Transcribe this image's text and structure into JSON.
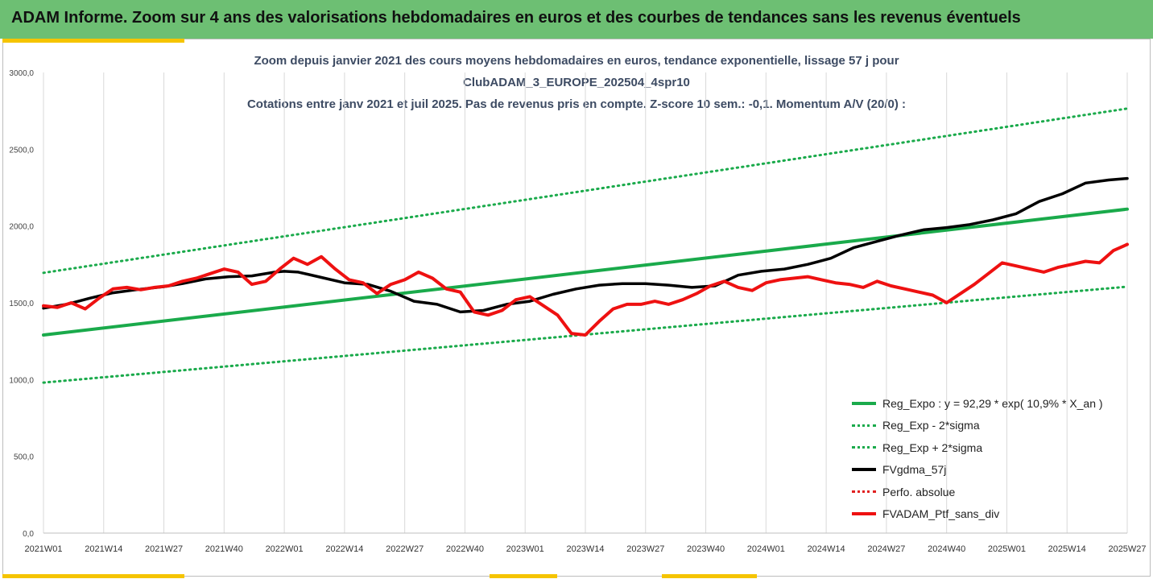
{
  "banner": {
    "title": "ADAM Informe. Zoom sur 4 ans des valorisations hebdomadaires en euros et des courbes de tendances sans les revenus éventuels"
  },
  "chart_data": {
    "type": "line",
    "title_lines": [
      "Zoom depuis janvier 2021 des cours moyens hebdomadaires  en euros, tendance exponentielle, lissage 57 j pour",
      "ClubADAM_3_EUROPE_202504_4spr10",
      "Cotations entre janv 2021 et juil 2025. Pas de revenus pris en compte. Z-score 10 sem.: -0,1. Momentum A/V (20/0) :"
    ],
    "xlabel": "",
    "ylabel": "",
    "ylim": [
      0,
      3000
    ],
    "y_ticks": [
      "0,0",
      "500,0",
      "1000,0",
      "1500,0",
      "2000,0",
      "2500,0",
      "3000,0"
    ],
    "x_ticks": [
      "2021W01",
      "2021W14",
      "2021W27",
      "2021W40",
      "2022W01",
      "2022W14",
      "2022W27",
      "2022W40",
      "2023W01",
      "2023W14",
      "2023W27",
      "2023W40",
      "2024W01",
      "2024W14",
      "2024W27",
      "2024W40",
      "2025W01",
      "2025W14",
      "2025W27"
    ],
    "grid": "vertical",
    "legend_position": "bottom-right",
    "series": [
      {
        "name": "Reg_Expo : y = 92,29 * exp( 10,9% *  X_an )",
        "style": "solid",
        "color": "#1aaa4b",
        "x": [
          0,
          234
        ],
        "y": [
          1290,
          2110
        ]
      },
      {
        "name": "Reg_Exp - 2*sigma",
        "style": "dotted",
        "color": "#1aaa4b",
        "x": [
          0,
          234
        ],
        "y": [
          980,
          1605
        ]
      },
      {
        "name": "Reg_Exp + 2*sigma",
        "style": "dotted",
        "color": "#1aaa4b",
        "x": [
          0,
          234
        ],
        "y": [
          1695,
          2765
        ]
      },
      {
        "name": "FVgdma_57j",
        "style": "solid",
        "color": "#000000",
        "x": [
          0,
          5,
          10,
          15,
          20,
          26,
          30,
          35,
          40,
          45,
          50,
          52,
          55,
          60,
          65,
          70,
          75,
          80,
          85,
          90,
          95,
          100,
          105,
          110,
          115,
          120,
          125,
          130,
          135,
          140,
          145,
          150,
          155,
          160,
          165,
          170,
          175,
          180,
          185,
          190,
          195,
          200,
          205,
          210,
          215,
          220,
          225,
          230,
          234
        ],
        "y": [
          1465,
          1490,
          1530,
          1565,
          1585,
          1605,
          1625,
          1655,
          1670,
          1675,
          1700,
          1705,
          1700,
          1665,
          1630,
          1620,
          1575,
          1510,
          1490,
          1440,
          1450,
          1490,
          1510,
          1555,
          1590,
          1615,
          1625,
          1625,
          1615,
          1600,
          1610,
          1680,
          1705,
          1720,
          1750,
          1790,
          1860,
          1900,
          1940,
          1975,
          1990,
          2010,
          2040,
          2080,
          2160,
          2210,
          2280,
          2300,
          2310
        ]
      },
      {
        "name": "Perfo. absolue",
        "style": "dotted",
        "color": "#e02020",
        "x": [],
        "y": []
      },
      {
        "name": "FVADAM_Ptf_sans_div",
        "style": "solid",
        "color": "#ee1111",
        "x": [
          0,
          3,
          6,
          9,
          12,
          15,
          18,
          21,
          24,
          27,
          30,
          33,
          36,
          39,
          42,
          45,
          48,
          51,
          54,
          57,
          60,
          63,
          66,
          69,
          72,
          75,
          78,
          81,
          84,
          87,
          90,
          93,
          96,
          99,
          102,
          105,
          108,
          111,
          114,
          117,
          120,
          123,
          126,
          129,
          132,
          135,
          138,
          141,
          144,
          147,
          150,
          153,
          156,
          159,
          162,
          165,
          168,
          171,
          174,
          177,
          180,
          183,
          186,
          189,
          192,
          195,
          198,
          201,
          204,
          207,
          210,
          213,
          216,
          219,
          222,
          225,
          228,
          231,
          234
        ],
        "y": [
          1480,
          1470,
          1500,
          1460,
          1530,
          1590,
          1600,
          1585,
          1600,
          1610,
          1640,
          1660,
          1690,
          1720,
          1700,
          1620,
          1640,
          1720,
          1790,
          1750,
          1800,
          1720,
          1650,
          1630,
          1560,
          1620,
          1650,
          1700,
          1660,
          1590,
          1570,
          1440,
          1420,
          1450,
          1520,
          1540,
          1480,
          1420,
          1300,
          1290,
          1380,
          1460,
          1490,
          1490,
          1510,
          1490,
          1520,
          1560,
          1610,
          1640,
          1600,
          1580,
          1630,
          1650,
          1660,
          1670,
          1650,
          1630,
          1620,
          1600,
          1640,
          1610,
          1590,
          1570,
          1550,
          1500,
          1560,
          1620,
          1690,
          1760,
          1740,
          1720,
          1700,
          1730,
          1750,
          1770,
          1760,
          1840,
          1880
        ]
      }
    ]
  },
  "legend_labels": [
    "Reg_Expo : y = 92,29 * exp( 10,9% *  X_an )",
    "Reg_Exp - 2*sigma",
    "Reg_Exp + 2*sigma",
    "FVgdma_57j",
    "Perfo. absolue",
    "FVADAM_Ptf_sans_div"
  ],
  "colors": {
    "banner": "#6dbf73",
    "trend": "#1aaa4b",
    "smooth": "#000000",
    "price": "#ee1111",
    "perf": "#e02020",
    "accent_yellow": "#f5c400"
  }
}
